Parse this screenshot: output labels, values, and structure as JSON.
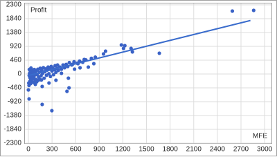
{
  "chart_data": {
    "type": "scatter",
    "y_label": "Profit",
    "x_label": "MFE",
    "x": [
      2590,
      2861,
      1181,
      1225,
      1304,
      1208,
      1321,
      1663,
      980,
      954,
      709,
      831,
      761,
      508,
      516,
      490,
      175,
      298,
      9,
      0,
      630,
      656,
      586,
      560,
      420,
      350,
      262,
      175,
      88,
      44,
      10,
      15,
      20,
      25,
      30,
      35,
      40,
      45,
      50,
      55,
      60,
      70,
      75,
      80,
      90,
      95,
      100,
      110,
      120,
      130,
      140,
      150,
      160,
      170,
      180,
      190,
      200,
      210,
      220,
      230,
      240,
      250,
      260,
      270,
      280,
      290,
      300,
      310,
      320,
      330,
      340,
      350,
      360,
      370,
      380,
      400,
      420,
      440,
      460,
      480,
      500,
      520,
      550,
      580,
      620,
      650,
      690,
      730,
      800,
      850,
      5,
      8,
      12,
      18,
      28,
      33,
      65,
      85,
      105,
      125,
      145,
      165
    ],
    "y": [
      2093,
      2116,
      966,
      943,
      851,
      851,
      736,
      690,
      759,
      667,
      483,
      345,
      230,
      -138,
      -460,
      -575,
      -1012,
      -1219,
      -828,
      -529,
      345,
      207,
      161,
      322,
      23,
      -207,
      -299,
      -414,
      -345,
      -253,
      -50,
      20,
      -120,
      60,
      -200,
      10,
      90,
      -60,
      130,
      -150,
      40,
      -90,
      150,
      -30,
      70,
      -180,
      110,
      -20,
      160,
      -100,
      60,
      190,
      -60,
      120,
      20,
      210,
      -140,
      80,
      170,
      -40,
      130,
      230,
      10,
      160,
      -80,
      250,
      100,
      200,
      -20,
      150,
      280,
      60,
      190,
      300,
      120,
      230,
      160,
      300,
      210,
      320,
      250,
      380,
      300,
      410,
      360,
      430,
      390,
      470,
      520,
      560,
      -300,
      -380,
      150,
      -250,
      -320,
      200,
      -280,
      -230,
      -260,
      -210,
      -180,
      -200
    ],
    "color": "#3a62c6",
    "trendline": {
      "x": [
        0,
        2820
      ],
      "y": [
        -50,
        1780
      ],
      "color": "#3a6ccc"
    },
    "xlim": [
      -44,
      3087
    ],
    "ylim": [
      -2300,
      2300
    ],
    "xticks": [
      0,
      300,
      600,
      900,
      1200,
      1500,
      1800,
      2100,
      2400,
      2700,
      3000
    ],
    "yticks": [
      -2300,
      -1840,
      -1380,
      -920,
      -460,
      0,
      460,
      920,
      1380,
      1840,
      2300
    ],
    "grid": true
  }
}
